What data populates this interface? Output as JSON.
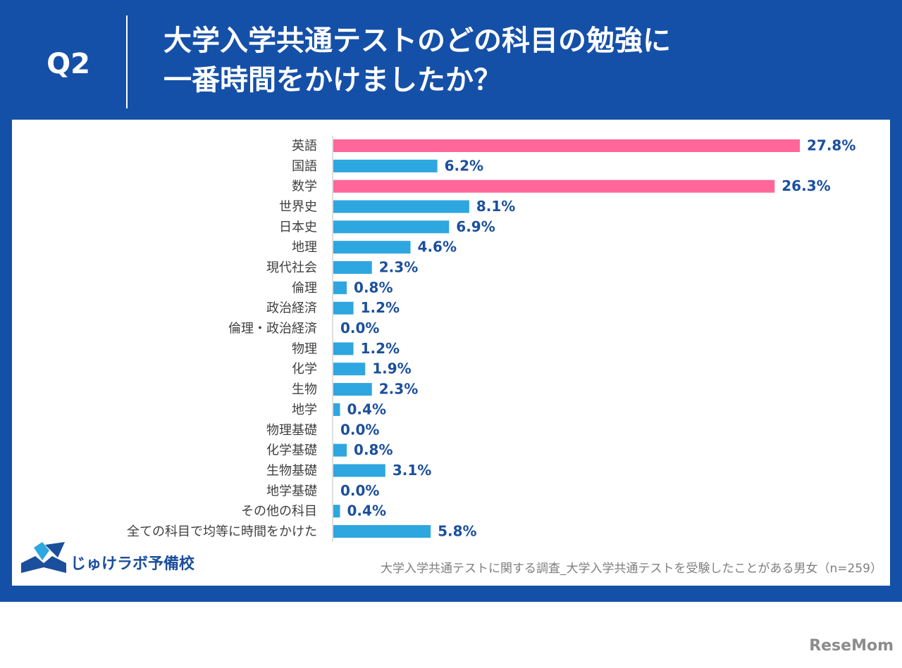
{
  "header": {
    "question": "Q2",
    "title_lines": [
      "大学入学共通テストのどの科目の勉強に",
      "一番時間をかけましたか？"
    ]
  },
  "chart_data": {
    "type": "bar",
    "categories": [
      "英語",
      "国語",
      "数学",
      "世界史",
      "日本史",
      "地理",
      "現代社会",
      "倫理",
      "政治経済",
      "倫理・政治経済",
      "物理",
      "化学",
      "生物",
      "地学",
      "物理基礎",
      "化学基礎",
      "生物基礎",
      "地学基礎",
      "その他の科目",
      "全ての科目で均等に時間をかけた"
    ],
    "values": [
      27.8,
      6.2,
      26.3,
      8.1,
      6.9,
      4.6,
      2.3,
      0.8,
      1.2,
      0.0,
      1.2,
      1.9,
      2.3,
      0.4,
      0.0,
      0.8,
      3.1,
      0.0,
      0.4,
      5.8
    ],
    "value_labels": [
      "27.8%",
      "6.2%",
      "26.3%",
      "8.1%",
      "6.9%",
      "4.6%",
      "2.3%",
      "0.8%",
      "1.2%",
      "0.0%",
      "1.2%",
      "1.9%",
      "2.3%",
      "0.4%",
      "0.0%",
      "0.8%",
      "3.1%",
      "0.0%",
      "0.4%",
      "5.8%"
    ],
    "colors": [
      "#ff6699",
      "#2ea6e0",
      "#ff6699",
      "#2ea6e0",
      "#2ea6e0",
      "#2ea6e0",
      "#2ea6e0",
      "#2ea6e0",
      "#2ea6e0",
      "#2ea6e0",
      "#2ea6e0",
      "#2ea6e0",
      "#2ea6e0",
      "#2ea6e0",
      "#2ea6e0",
      "#2ea6e0",
      "#2ea6e0",
      "#2ea6e0",
      "#2ea6e0",
      "#2ea6e0"
    ]
  },
  "footer": {
    "logo": "じゅけラボ予備校",
    "source": "大学入学共通テストに関する調査_大学入学共通テストを受験したことがある男女（n=259）"
  },
  "watermark": "ReseMom"
}
